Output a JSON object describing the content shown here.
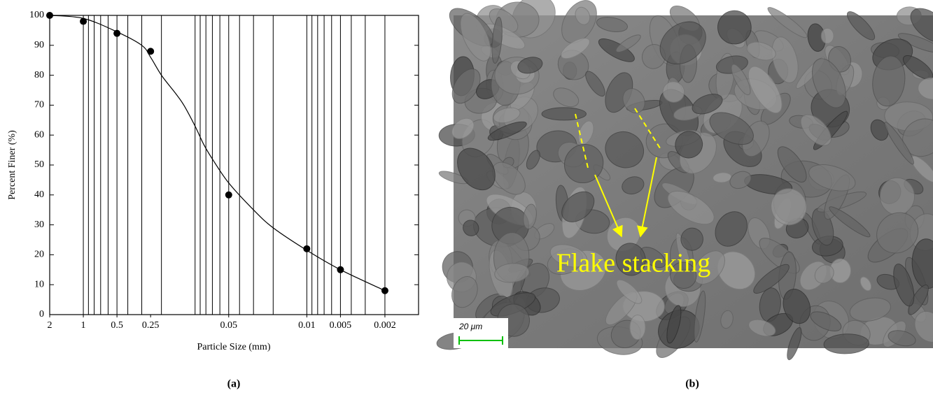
{
  "chart_data": {
    "type": "scatter",
    "x_label": "Particle Size (mm)",
    "y_label": "Percent Finer (%)",
    "xlim": [
      2,
      0.001
    ],
    "ylim": [
      0,
      100
    ],
    "xscale": "log",
    "xticks": [
      2,
      1,
      0.5,
      0.25,
      0.05,
      0.01,
      0.005,
      0.002
    ],
    "yticks": [
      0,
      10,
      20,
      30,
      40,
      50,
      60,
      70,
      80,
      90,
      100
    ],
    "xgrid": [
      1,
      0.9,
      0.8,
      0.7,
      0.6,
      0.5,
      0.4,
      0.3,
      0.2,
      0.1,
      0.09,
      0.08,
      0.07,
      0.06,
      0.05,
      0.04,
      0.03,
      0.02,
      0.01,
      0.009,
      0.008,
      0.007,
      0.006,
      0.005,
      0.004,
      0.003,
      0.002
    ],
    "color": "#000000",
    "points": {
      "x": [
        2,
        1,
        0.5,
        0.25,
        0.05,
        0.01,
        0.005,
        0.002
      ],
      "y": [
        100,
        98,
        94,
        88,
        40,
        22,
        15,
        8
      ]
    },
    "curve": {
      "x": [
        2,
        1,
        0.5,
        0.3,
        0.25,
        0.2,
        0.15,
        0.126,
        0.1,
        0.084,
        0.07,
        0.05,
        0.03,
        0.02,
        0.01,
        0.005,
        0.002
      ],
      "y": [
        100,
        99,
        94.5,
        90,
        86,
        80,
        74,
        70,
        63,
        57,
        52,
        44,
        35,
        29,
        21.5,
        15,
        8
      ]
    }
  },
  "panels": {
    "a": "(a)",
    "b": "(b)"
  },
  "image": {
    "annotation": "Flake stacking",
    "scale_bar": "20 μm"
  }
}
